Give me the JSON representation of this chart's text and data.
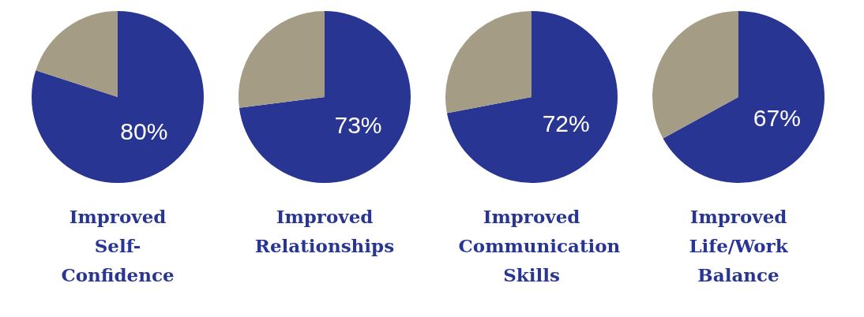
{
  "chart_data": [
    {
      "type": "pie",
      "title": "Improved Self-Confidence",
      "categories": [
        null,
        null
      ],
      "values": [
        80,
        20
      ],
      "colors": [
        "#283593",
        "#a59c86"
      ],
      "value_labels": [
        "80%",
        null
      ]
    },
    {
      "type": "pie",
      "title": "Improved Relationships",
      "categories": [
        null,
        null
      ],
      "values": [
        73,
        27
      ],
      "colors": [
        "#283593",
        "#a59c86"
      ],
      "value_labels": [
        "73%",
        null
      ]
    },
    {
      "type": "pie",
      "title": "Improved Communication Skills",
      "categories": [
        null,
        null
      ],
      "values": [
        72,
        28
      ],
      "colors": [
        "#283593",
        "#a59c86"
      ],
      "value_labels": [
        "72%",
        null
      ]
    },
    {
      "type": "pie",
      "title": "Improved Life/Work Balance",
      "categories": [
        null,
        null
      ],
      "values": [
        67,
        33
      ],
      "colors": [
        "#283593",
        "#a59c86"
      ],
      "value_labels": [
        "67%",
        null
      ]
    }
  ]
}
